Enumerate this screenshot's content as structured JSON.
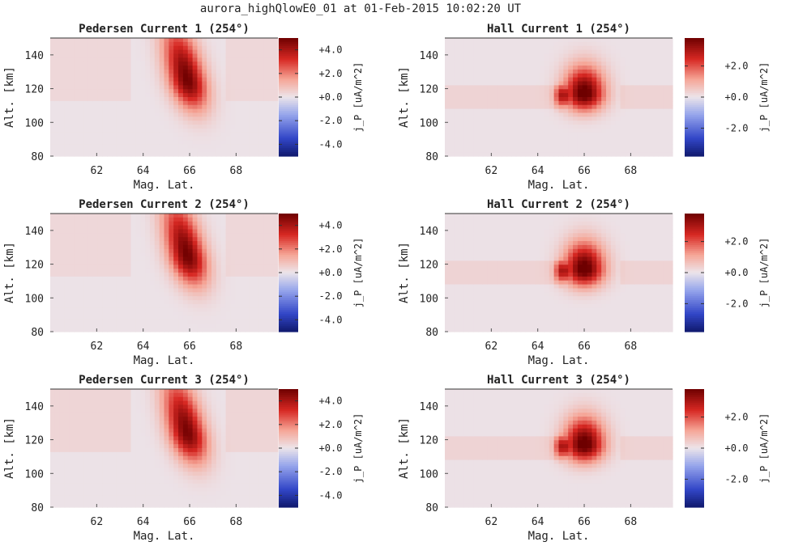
{
  "figure": {
    "suptitle": "aurora_highQlowE0_01 at 01-Feb-2015 10:02:20 UT"
  },
  "chart_data": [
    {
      "type": "heatmap",
      "title": "Pedersen Current 1 (254°)",
      "xlabel": "Mag. Lat.",
      "ylabel": "Alt. [km]",
      "xlim": [
        60.0,
        69.8
      ],
      "ylim": [
        80,
        150
      ],
      "xticks": [
        "62",
        "64",
        "66",
        "68"
      ],
      "yticks": [
        "80",
        "100",
        "120",
        "140"
      ],
      "colorbar": {
        "label": "j_P [uA/m^2]",
        "ticks": [
          "-4.0",
          "-2.0",
          "+0.0",
          "+2.0",
          "+4.0"
        ],
        "clim": [
          -5,
          5
        ],
        "colormap": "blue-white-red"
      },
      "features": {
        "background": 0.3,
        "peak_lat": 65.9,
        "peak_alt": 125,
        "peak_value": 4.9,
        "tilt": "upper-left"
      }
    },
    {
      "type": "heatmap",
      "title": "Hall Current 1 (254°)",
      "xlabel": "Mag. Lat.",
      "ylabel": "Alt. [km]",
      "xlim": [
        60.0,
        69.8
      ],
      "ylim": [
        80,
        150
      ],
      "xticks": [
        "62",
        "64",
        "66",
        "68"
      ],
      "yticks": [
        "80",
        "100",
        "120",
        "140"
      ],
      "colorbar": {
        "label": "j_P [uA/m^2]",
        "ticks": [
          "-2.0",
          "+0.0",
          "+2.0"
        ],
        "clim": [
          -3.8,
          3.8
        ],
        "colormap": "blue-white-red"
      },
      "features": {
        "background": 0.3,
        "peak_lat": 66.0,
        "peak_alt": 117,
        "peak_value": 4.0,
        "tilt": "none"
      }
    },
    {
      "type": "heatmap",
      "title": "Pedersen Current 2 (254°)",
      "xlabel": "Mag. Lat.",
      "ylabel": "Alt. [km]",
      "xlim": [
        60.0,
        69.8
      ],
      "ylim": [
        80,
        150
      ],
      "xticks": [
        "62",
        "64",
        "66",
        "68"
      ],
      "yticks": [
        "80",
        "100",
        "120",
        "140"
      ],
      "colorbar": {
        "label": "j_P [uA/m^2]",
        "ticks": [
          "-4.0",
          "-2.0",
          "+0.0",
          "+2.0",
          "+4.0"
        ],
        "clim": [
          -5,
          5
        ],
        "colormap": "blue-white-red"
      },
      "features": {
        "background": 0.3,
        "peak_lat": 65.9,
        "peak_alt": 125,
        "peak_value": 4.9,
        "tilt": "upper-left"
      }
    },
    {
      "type": "heatmap",
      "title": "Hall Current 2 (254°)",
      "xlabel": "Mag. Lat.",
      "ylabel": "Alt. [km]",
      "xlim": [
        60.0,
        69.8
      ],
      "ylim": [
        80,
        150
      ],
      "xticks": [
        "62",
        "64",
        "66",
        "68"
      ],
      "yticks": [
        "80",
        "100",
        "120",
        "140"
      ],
      "colorbar": {
        "label": "j_P [uA/m^2]",
        "ticks": [
          "-2.0",
          "+0.0",
          "+2.0"
        ],
        "clim": [
          -3.8,
          3.8
        ],
        "colormap": "blue-white-red"
      },
      "features": {
        "background": 0.3,
        "peak_lat": 66.0,
        "peak_alt": 117,
        "peak_value": 4.0,
        "tilt": "none"
      }
    },
    {
      "type": "heatmap",
      "title": "Pedersen Current 3 (254°)",
      "xlabel": "Mag. Lat.",
      "ylabel": "Alt. [km]",
      "xlim": [
        60.0,
        69.8
      ],
      "ylim": [
        80,
        150
      ],
      "xticks": [
        "62",
        "64",
        "66",
        "68"
      ],
      "yticks": [
        "80",
        "100",
        "120",
        "140"
      ],
      "colorbar": {
        "label": "j_P [uA/m^2]",
        "ticks": [
          "-4.0",
          "-2.0",
          "+0.0",
          "+2.0",
          "+4.0"
        ],
        "clim": [
          -5,
          5
        ],
        "colormap": "blue-white-red"
      },
      "features": {
        "background": 0.35,
        "peak_lat": 65.9,
        "peak_alt": 124,
        "peak_value": 4.8,
        "tilt": "upper-left"
      }
    },
    {
      "type": "heatmap",
      "title": "Hall Current 3 (254°)",
      "xlabel": "Mag. Lat.",
      "ylabel": "Alt. [km]",
      "xlim": [
        60.0,
        69.8
      ],
      "ylim": [
        80,
        150
      ],
      "xticks": [
        "62",
        "64",
        "66",
        "68"
      ],
      "yticks": [
        "80",
        "100",
        "120",
        "140"
      ],
      "colorbar": {
        "label": "j_P [uA/m^2]",
        "ticks": [
          "-2.0",
          "+0.0",
          "+2.0"
        ],
        "clim": [
          -3.8,
          3.8
        ],
        "colormap": "blue-white-red"
      },
      "features": {
        "background": 0.3,
        "peak_lat": 66.0,
        "peak_alt": 117,
        "peak_value": 4.0,
        "tilt": "none"
      }
    }
  ]
}
